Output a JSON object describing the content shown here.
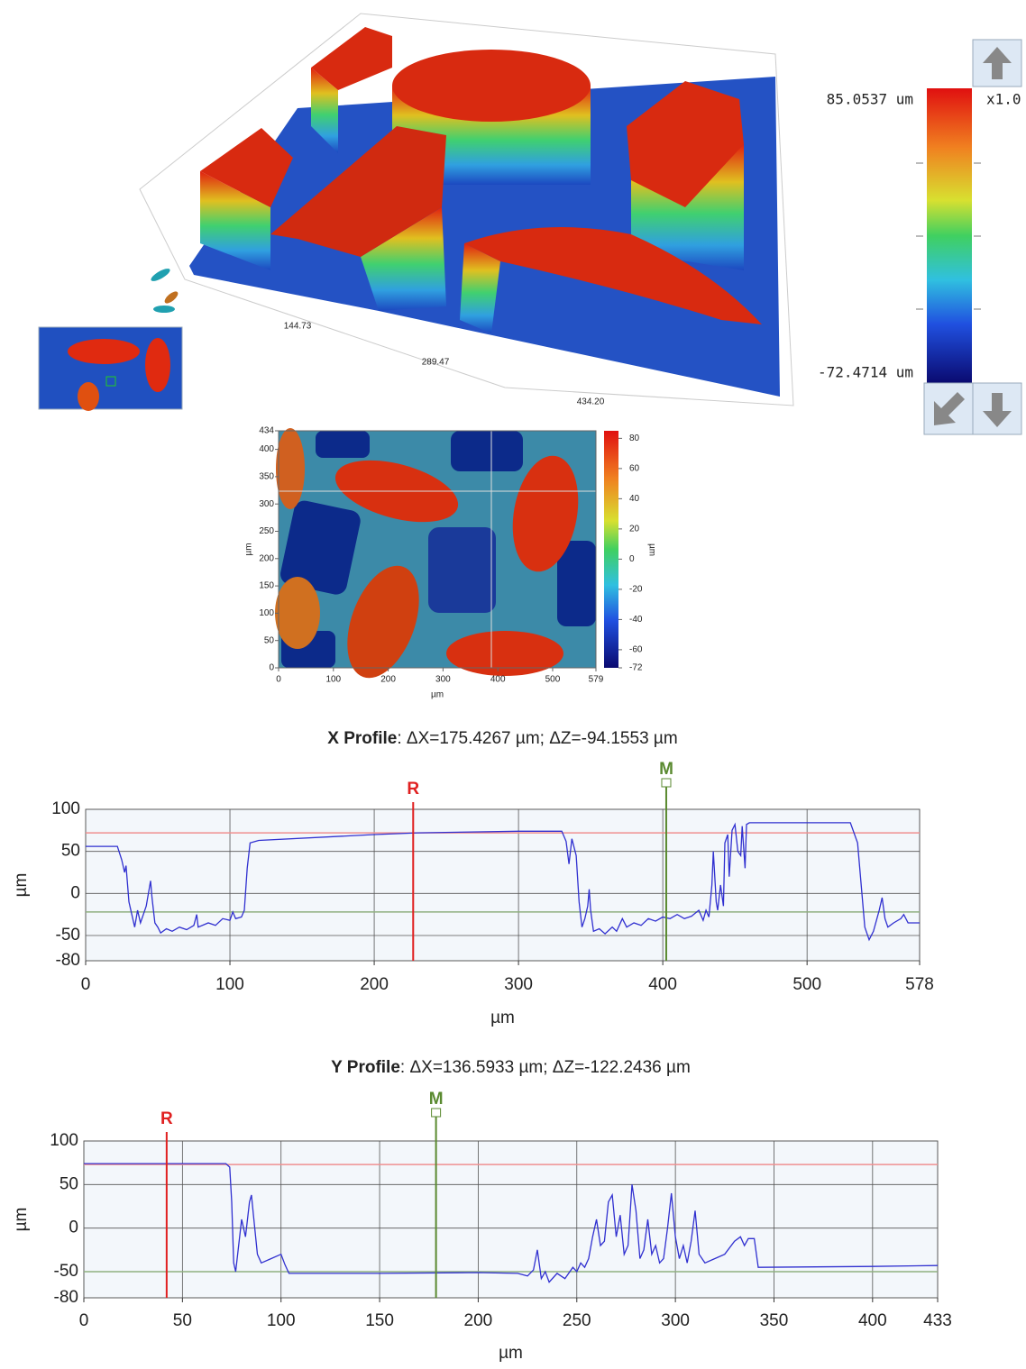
{
  "surface_view": {
    "z_max_label": "85.0537 um",
    "z_min_label": "-72.4714 um",
    "zoom_label": "x1.0",
    "axis_labels": [
      "144.73",
      "289.47",
      "434.20"
    ]
  },
  "chart_data": [
    {
      "type": "heatmap",
      "xlabel": "µm",
      "ylabel": "µm",
      "colorbar_label": "µm",
      "xlim": [
        0,
        579
      ],
      "xticks": [
        0,
        100,
        200,
        300,
        400,
        500,
        579
      ],
      "ylim": [
        0,
        434
      ],
      "yticks": [
        0,
        50,
        100,
        150,
        200,
        250,
        300,
        350,
        400,
        434
      ],
      "zlim": [
        -72,
        85
      ],
      "zticks": [
        -72,
        -60,
        -40,
        -20,
        0,
        20,
        40,
        60,
        80
      ]
    },
    {
      "type": "line",
      "title_label": "X Profile",
      "title_detail": ": ΔX=175.4267 µm; ΔZ=-94.1553 µm",
      "xlabel": "µm",
      "ylabel": "µm",
      "color": "#3030d0",
      "xlim": [
        0,
        578
      ],
      "xticks": [
        0,
        100,
        200,
        300,
        400,
        500,
        578
      ],
      "ylim": [
        -80,
        100
      ],
      "yticks": [
        -80,
        -50,
        0,
        50,
        100
      ],
      "grid": true,
      "reference_lines": [
        {
          "value": 72,
          "color": "#f09090"
        },
        {
          "value": -22,
          "color": "#90b080"
        }
      ],
      "cursors": [
        {
          "label": "R",
          "x": 227,
          "color": "#e02020"
        },
        {
          "label": "M",
          "x": 402.4,
          "color": "#5a8a30"
        }
      ],
      "x": [
        0,
        22,
        25,
        27,
        28,
        30,
        32,
        34,
        36,
        38,
        40,
        42,
        44,
        45,
        46,
        48,
        50,
        52,
        56,
        60,
        65,
        70,
        75,
        77,
        78,
        85,
        90,
        95,
        100,
        102,
        104,
        108,
        110,
        112,
        114,
        120,
        200,
        230,
        300,
        330,
        333,
        335,
        337,
        340,
        342,
        344,
        346,
        348,
        349,
        350,
        352,
        356,
        360,
        365,
        368,
        372,
        375,
        380,
        385,
        390,
        395,
        400,
        405,
        410,
        415,
        420,
        425,
        428,
        430,
        432,
        434,
        435,
        437,
        438,
        440,
        442,
        443,
        445,
        446,
        448,
        450,
        452,
        454,
        455,
        457,
        458,
        460,
        530,
        535,
        538,
        540,
        543,
        546,
        550,
        552,
        554,
        556,
        560,
        565,
        567,
        570,
        578
      ],
      "values": [
        56,
        56,
        40,
        25,
        33,
        -10,
        -25,
        -40,
        -20,
        -35,
        -25,
        -15,
        5,
        15,
        -5,
        -35,
        -40,
        -47,
        -42,
        -45,
        -40,
        -43,
        -38,
        -25,
        -40,
        -35,
        -38,
        -30,
        -32,
        -22,
        -30,
        -28,
        -20,
        30,
        60,
        63,
        70,
        72,
        74,
        74,
        62,
        35,
        65,
        45,
        -10,
        -40,
        -30,
        -15,
        5,
        -20,
        -45,
        -42,
        -48,
        -40,
        -45,
        -30,
        -40,
        -35,
        -38,
        -30,
        -33,
        -28,
        -30,
        -25,
        -30,
        -27,
        -20,
        -32,
        -20,
        -28,
        10,
        50,
        -10,
        -20,
        10,
        -15,
        60,
        70,
        20,
        75,
        82,
        50,
        45,
        80,
        30,
        82,
        84,
        84,
        60,
        0,
        -40,
        -55,
        -45,
        -20,
        -5,
        -30,
        -40,
        -35,
        -30,
        -25,
        -35,
        -35
      ]
    },
    {
      "type": "line",
      "title_label": "Y Profile",
      "title_detail": ": ΔX=136.5933 µm; ΔZ=-122.2436 µm",
      "xlabel": "µm",
      "ylabel": "µm",
      "color": "#3030d0",
      "xlim": [
        0,
        433
      ],
      "xticks": [
        0,
        50,
        100,
        150,
        200,
        250,
        300,
        350,
        400,
        433
      ],
      "ylim": [
        -80,
        100
      ],
      "yticks": [
        -80,
        -50,
        0,
        50,
        100
      ],
      "grid": true,
      "reference_lines": [
        {
          "value": 73,
          "color": "#f09090"
        },
        {
          "value": -50,
          "color": "#90b080"
        }
      ],
      "cursors": [
        {
          "label": "R",
          "x": 42,
          "color": "#e02020"
        },
        {
          "label": "M",
          "x": 178.6,
          "color": "#5a8a30"
        }
      ],
      "x": [
        0,
        72,
        74,
        75,
        76,
        77,
        78,
        80,
        82,
        84,
        85,
        86,
        88,
        90,
        95,
        100,
        102,
        104,
        150,
        200,
        220,
        225,
        228,
        230,
        232,
        234,
        236,
        240,
        244,
        248,
        250,
        252,
        254,
        256,
        258,
        260,
        262,
        264,
        266,
        268,
        270,
        272,
        274,
        276,
        278,
        280,
        282,
        284,
        286,
        288,
        290,
        292,
        294,
        296,
        298,
        300,
        302,
        304,
        306,
        308,
        310,
        312,
        315,
        320,
        325,
        330,
        333,
        335,
        337,
        340,
        342,
        400,
        433
      ],
      "values": [
        74,
        74,
        70,
        30,
        -40,
        -50,
        -30,
        10,
        -10,
        30,
        38,
        15,
        -30,
        -40,
        -35,
        -30,
        -42,
        -52,
        -52,
        -51,
        -52,
        -55,
        -48,
        -25,
        -58,
        -50,
        -62,
        -52,
        -58,
        -45,
        -50,
        -40,
        -45,
        -35,
        -10,
        10,
        -20,
        -15,
        30,
        38,
        -10,
        15,
        -30,
        -20,
        50,
        20,
        -35,
        -25,
        10,
        -30,
        -20,
        -40,
        -35,
        0,
        40,
        -10,
        -35,
        -20,
        -40,
        -15,
        20,
        -30,
        -40,
        -35,
        -30,
        -15,
        -10,
        -20,
        -12,
        -12,
        -45,
        -44,
        -43
      ]
    }
  ]
}
